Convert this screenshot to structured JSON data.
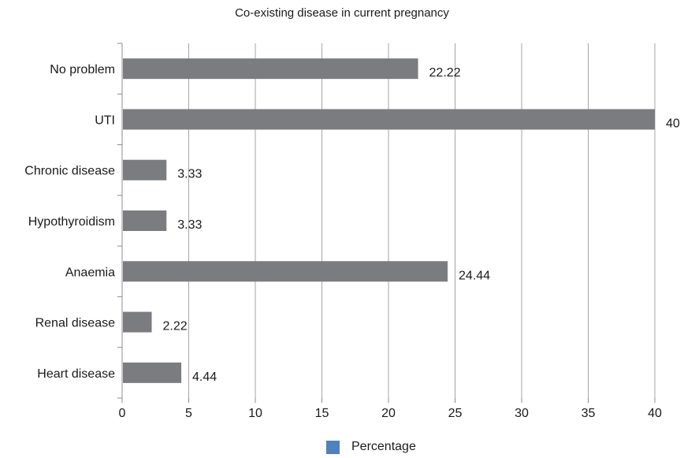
{
  "chart_data": {
    "type": "bar",
    "orientation": "horizontal",
    "title": "Co-existing disease in current pregnancy",
    "categories": [
      "No problem",
      "UTI",
      "Chronic disease",
      "Hypothyroidism",
      "Anaemia",
      "Renal disease",
      "Heart disease"
    ],
    "series": [
      {
        "name": "Percentage",
        "values": [
          22.22,
          40,
          3.33,
          3.33,
          24.44,
          2.22,
          4.44
        ]
      }
    ],
    "value_labels": [
      "22.22",
      "40",
      "3.33",
      "3.33",
      "24.44",
      "2.22",
      "4.44"
    ],
    "xlim": [
      0,
      40
    ],
    "xticks": [
      0,
      5,
      10,
      15,
      20,
      25,
      30,
      35,
      40
    ],
    "grid": "vertical",
    "legend_position": "bottom",
    "colors": {
      "bar": "#7b7c7f",
      "legend_swatch": "#4f81bd",
      "grid": "#a6a6a6",
      "axis": "#8c8c8c"
    }
  }
}
